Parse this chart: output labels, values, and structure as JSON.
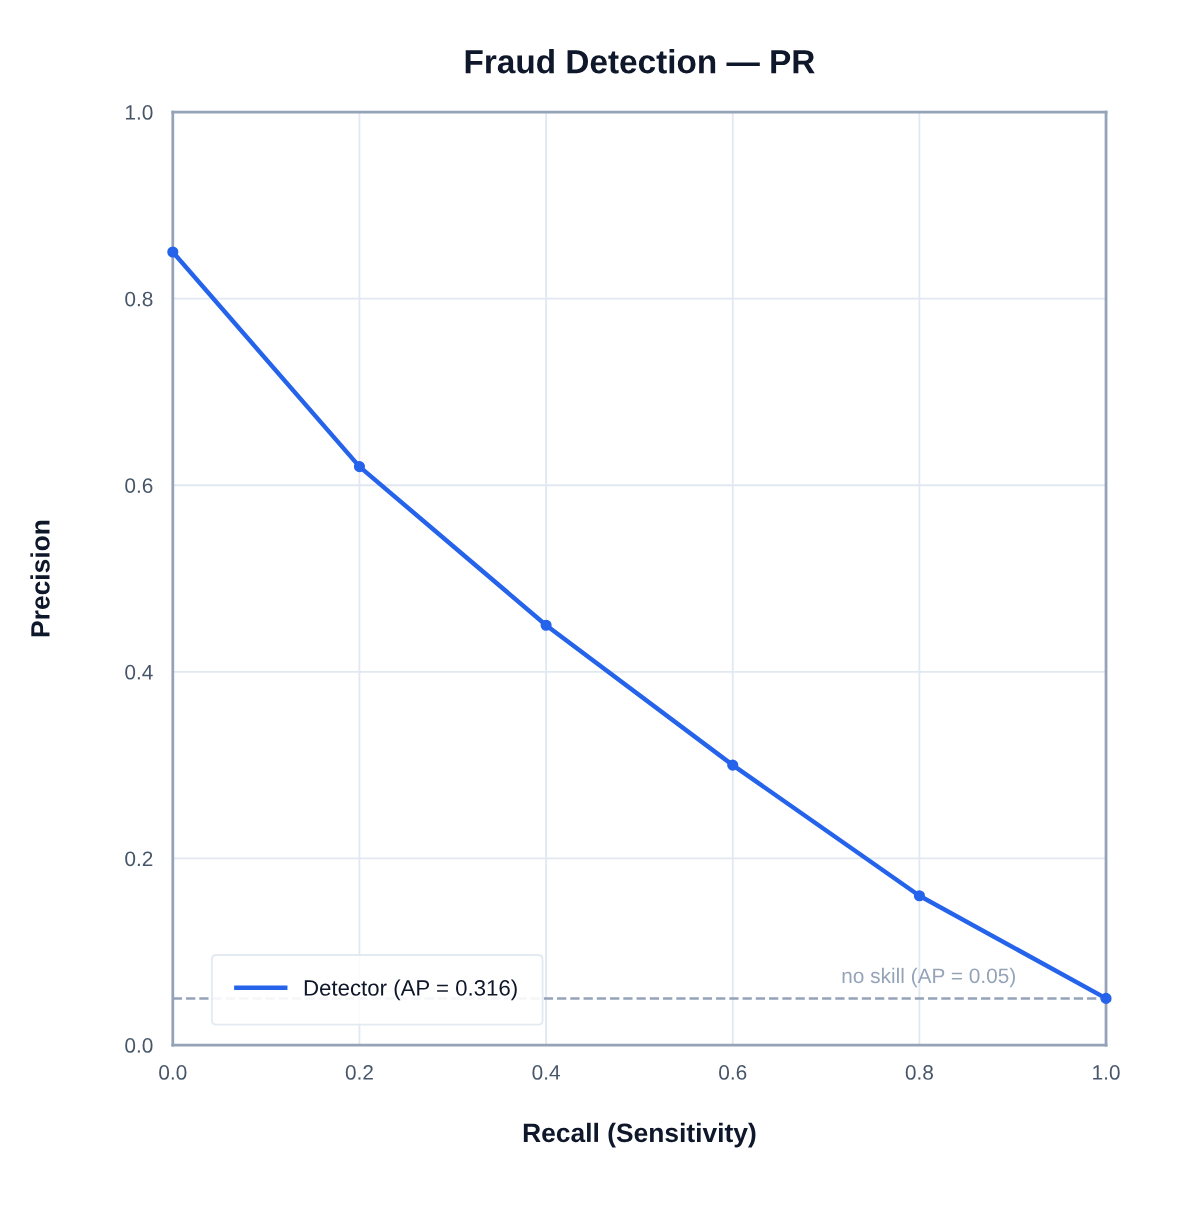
{
  "chart_data": {
    "type": "line",
    "title": "Fraud Detection — PR",
    "xlabel": "Recall (Sensitivity)",
    "ylabel": "Precision",
    "x": [
      0.0,
      0.2,
      0.4,
      0.6,
      0.8,
      1.0
    ],
    "series": [
      {
        "name": "Detector (AP = 0.316)",
        "color": "#2563eb",
        "values": [
          0.85,
          0.62,
          0.45,
          0.3,
          0.16,
          0.05
        ]
      }
    ],
    "xlim": [
      0.0,
      1.0
    ],
    "ylim": [
      0.0,
      1.0
    ],
    "xticks": [
      {
        "value": 0,
        "label": "0.0"
      },
      0.2,
      0.4,
      0.6,
      0.8,
      {
        "value": 1,
        "label": "1.0"
      }
    ],
    "yticks": [
      {
        "value": 0,
        "label": "0.0"
      },
      0.2,
      0.4,
      0.6,
      0.8,
      {
        "value": 1,
        "label": "1.0"
      }
    ],
    "ref_lines": [
      {
        "axis": "y",
        "value": 0.05,
        "label": "no skill (AP = 0.05)",
        "color": "#94a3b8",
        "line_style": "dashed"
      }
    ],
    "grid": true,
    "legend": "bottom left",
    "marker": "circle",
    "line_style": "solid"
  }
}
